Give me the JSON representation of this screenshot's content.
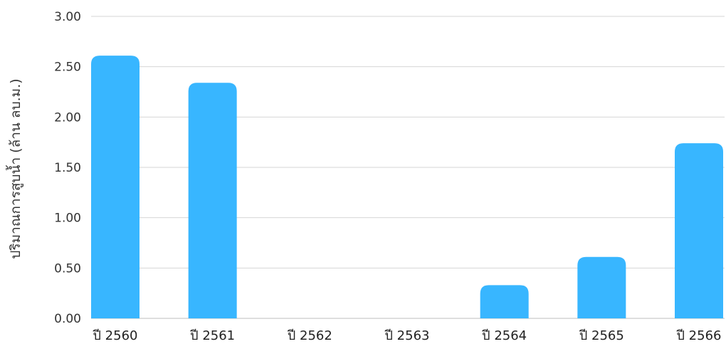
{
  "chart_data": {
    "type": "bar",
    "title": "",
    "xlabel": "",
    "ylabel": "ปริมาณการสูบน้ำ (ล้าน ลบ.ม.)",
    "categories": [
      "ปี 2560",
      "ปี 2561",
      "ปี 2562",
      "ปี 2563",
      "ปี 2564",
      "ปี 2565",
      "ปี 2566"
    ],
    "values": [
      2.61,
      2.34,
      0,
      0,
      0.33,
      0.61,
      1.74
    ],
    "ylim": [
      0,
      3
    ],
    "yticks": [
      "0.00",
      "0.50",
      "1.00",
      "1.50",
      "2.00",
      "2.50",
      "3.00"
    ],
    "grid": true,
    "bar_color": "#38b6ff"
  }
}
